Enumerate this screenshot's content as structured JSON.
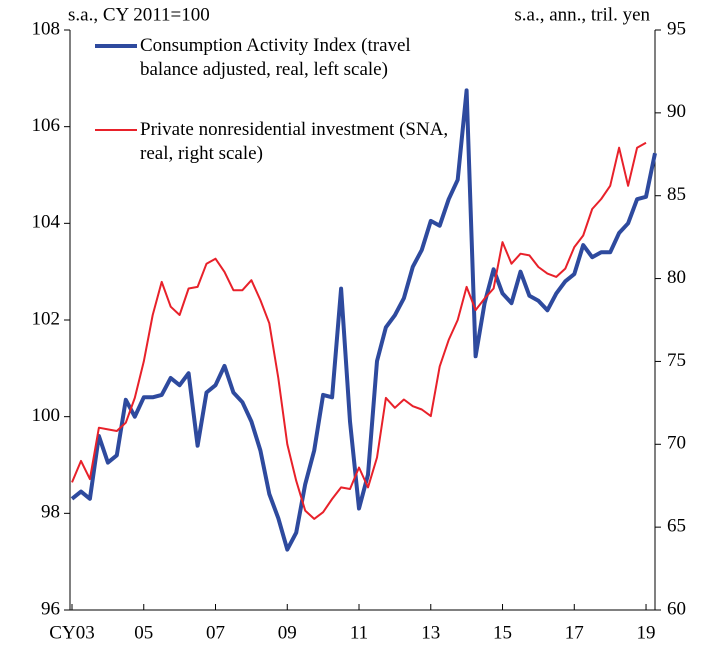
{
  "chart_data": {
    "type": "line",
    "left_axis_label": "s.a., CY 2011=100",
    "right_axis_label": "s.a., ann., tril. yen",
    "categories": [
      "CY03",
      null,
      null,
      null,
      null,
      null,
      null,
      null,
      "05",
      null,
      null,
      null,
      null,
      null,
      null,
      null,
      "07",
      null,
      null,
      null,
      null,
      null,
      null,
      null,
      "09",
      null,
      null,
      null,
      null,
      null,
      null,
      null,
      "11",
      null,
      null,
      null,
      null,
      null,
      null,
      null,
      "13",
      null,
      null,
      null,
      null,
      null,
      null,
      null,
      "15",
      null,
      null,
      null,
      null,
      null,
      null,
      null,
      "17",
      null,
      null,
      null,
      null,
      null,
      null,
      null,
      "19",
      null
    ],
    "ylim": [
      96,
      108
    ],
    "yticks": [
      96,
      98,
      100,
      102,
      104,
      106,
      108
    ],
    "y2lim": [
      60,
      95
    ],
    "y2ticks": [
      60,
      65,
      70,
      75,
      80,
      85,
      90,
      95
    ],
    "series": [
      {
        "name": "Consumption Activity Index (travel balance adjusted, real, left scale)",
        "color": "#2e4a9e",
        "axis": "y",
        "values": [
          98.3,
          98.45,
          98.3,
          99.6,
          99.05,
          99.2,
          100.35,
          100.0,
          100.4,
          100.4,
          100.45,
          100.8,
          100.65,
          100.9,
          99.4,
          100.5,
          100.65,
          101.05,
          100.5,
          100.3,
          99.9,
          99.3,
          98.4,
          97.9,
          97.25,
          97.6,
          98.6,
          99.3,
          100.45,
          100.4,
          102.65,
          99.9,
          98.1,
          98.8,
          101.15,
          101.85,
          102.1,
          102.45,
          103.1,
          103.45,
          104.05,
          103.95,
          104.5,
          104.9,
          106.75,
          101.25,
          102.35,
          103.05,
          102.55,
          102.35,
          103.0,
          102.5,
          102.4,
          102.2,
          102.55,
          102.8,
          102.95,
          103.55,
          103.3,
          103.4,
          103.4,
          103.8,
          104.0,
          104.5,
          104.55,
          105.45
        ]
      },
      {
        "name": "Private nonresidential investment (SNA, real, right scale)",
        "color": "#e8212a",
        "axis": "y2",
        "values": [
          67.7,
          69.0,
          67.9,
          71.0,
          70.9,
          70.8,
          71.3,
          72.8,
          75.0,
          77.8,
          79.8,
          78.3,
          77.8,
          79.4,
          79.5,
          80.9,
          81.2,
          80.4,
          79.3,
          79.3,
          79.9,
          78.7,
          77.3,
          74.0,
          70.0,
          67.8,
          66.0,
          65.5,
          65.9,
          66.7,
          67.4,
          67.3,
          68.6,
          67.4,
          69.2,
          72.8,
          72.2,
          72.7,
          72.3,
          72.1,
          71.7,
          74.7,
          76.3,
          77.5,
          79.5,
          78.1,
          78.8,
          79.4,
          82.2,
          80.9,
          81.5,
          81.4,
          80.7,
          80.3,
          80.1,
          80.6,
          81.9,
          82.6,
          84.2,
          84.8,
          85.6,
          87.9,
          85.6,
          87.9,
          88.2,
          null
        ]
      }
    ]
  }
}
